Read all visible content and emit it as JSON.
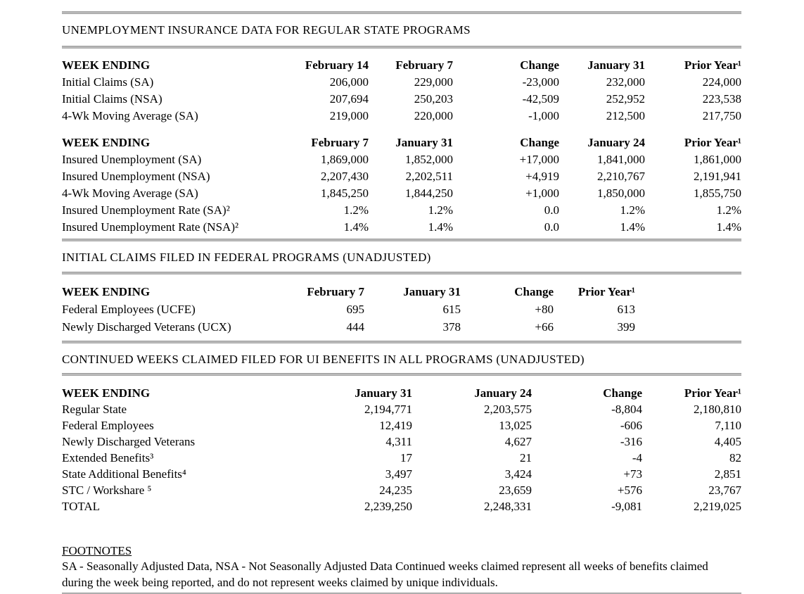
{
  "colors": {
    "background": "#ffffff",
    "text": "#000000",
    "divider": "#a6a6a6"
  },
  "sections": [
    {
      "title": "UNEMPLOYMENT INSURANCE DATA FOR REGULAR STATE PROGRAMS",
      "tables": [
        {
          "header": [
            "WEEK ENDING",
            "February 14",
            "February 7",
            "Change",
            "January 31",
            "Prior Year¹"
          ],
          "rows": [
            [
              "Initial Claims (SA)",
              "206,000",
              "229,000",
              "-23,000",
              "232,000",
              "224,000"
            ],
            [
              "Initial Claims (NSA)",
              "207,694",
              "250,203",
              "-42,509",
              "252,952",
              "223,538"
            ],
            [
              "4-Wk Moving Average (SA)",
              "219,000",
              "220,000",
              "-1,000",
              "212,500",
              "217,750"
            ]
          ]
        },
        {
          "header": [
            "WEEK ENDING",
            "February 7",
            "January 31",
            "Change",
            "January 24",
            "Prior Year¹"
          ],
          "rows": [
            [
              "Insured Unemployment (SA)",
              "1,869,000",
              "1,852,000",
              "+17,000",
              "1,841,000",
              "1,861,000"
            ],
            [
              "Insured Unemployment (NSA)",
              "2,207,430",
              "2,202,511",
              "+4,919",
              "2,210,767",
              "2,191,941"
            ],
            [
              "4-Wk Moving Average (SA)",
              "1,845,250",
              "1,844,250",
              "+1,000",
              "1,850,000",
              "1,855,750"
            ],
            [
              "Insured Unemployment Rate (SA)²",
              "1.2%",
              "1.2%",
              "0.0",
              "1.2%",
              "1.2%"
            ],
            [
              "Insured Unemployment Rate (NSA)²",
              "1.4%",
              "1.4%",
              "0.0",
              "1.4%",
              "1.4%"
            ]
          ]
        }
      ]
    },
    {
      "title": "INITIAL CLAIMS FILED IN FEDERAL PROGRAMS (UNADJUSTED)",
      "tables": [
        {
          "header": [
            "WEEK ENDING",
            "February 7",
            "January 31",
            "Change",
            "Prior Year¹"
          ],
          "rows": [
            [
              "Federal Employees (UCFE)",
              "695",
              "615",
              "+80",
              "613"
            ],
            [
              "Newly Discharged Veterans (UCX)",
              "444",
              "378",
              "+66",
              "399"
            ]
          ]
        }
      ]
    },
    {
      "title": "CONTINUED WEEKS CLAIMED FILED FOR UI BENEFITS IN ALL PROGRAMS (UNADJUSTED)",
      "tables": [
        {
          "header": [
            "WEEK ENDING",
            "January 31",
            "January 24",
            "Change",
            "Prior Year¹"
          ],
          "rows": [
            [
              "Regular State",
              "2,194,771",
              "2,203,575",
              "-8,804",
              "2,180,810"
            ],
            [
              "Federal Employees",
              "12,419",
              "13,025",
              "-606",
              "7,110"
            ],
            [
              "Newly Discharged Veterans",
              "4,311",
              "4,627",
              "-316",
              "4,405"
            ],
            [
              "Extended Benefits³",
              "17",
              "21",
              "-4",
              "82"
            ],
            [
              "State Additional Benefits⁴",
              "3,497",
              "3,424",
              "+73",
              "2,851"
            ],
            [
              "STC / Workshare ⁵",
              "24,235",
              "23,659",
              "+576",
              "23,767"
            ],
            [
              "TOTAL",
              "2,239,250",
              "2,248,331",
              "-9,081",
              "2,219,025"
            ]
          ]
        }
      ]
    }
  ],
  "footnotes": {
    "heading": "FOOTNOTES",
    "body": "SA - Seasonally Adjusted Data, NSA - Not Seasonally Adjusted Data Continued weeks claimed represent all weeks of benefits claimed during the week being reported, and do not represent weeks claimed by unique individuals."
  }
}
